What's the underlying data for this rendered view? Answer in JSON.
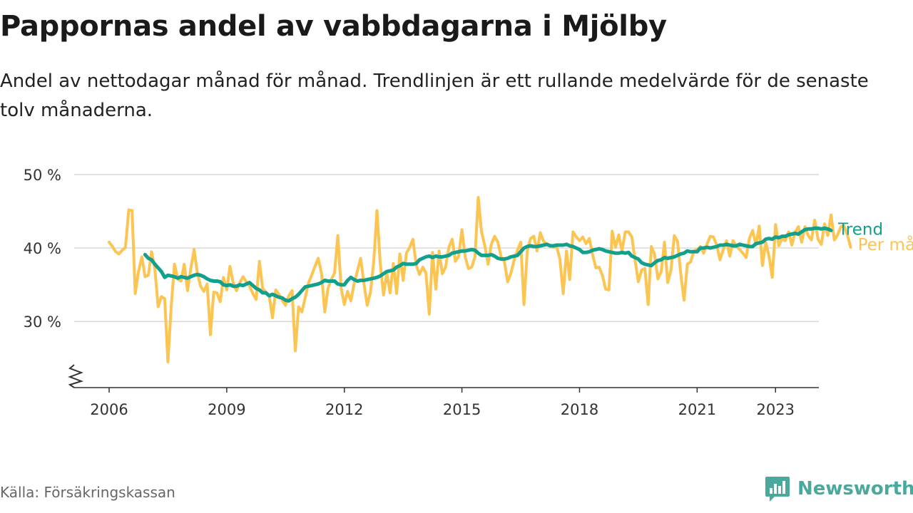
{
  "header": {
    "title": "Pappornas andel av vabbdagarna i Mjölby",
    "subtitle": "Andel av nettodagar månad för månad. Trendlinjen är ett rullande medelvärde för de senaste tolv månaderna."
  },
  "footer": {
    "source": "Källa: Försäkringskassan",
    "brand": "Newsworthy",
    "brand_icon": "bar-chart-speech-bubble-icon"
  },
  "colors": {
    "monthly": "#fcc450",
    "trend": "#12a08d",
    "grid": "#d9d9d9",
    "axis": "#333333",
    "brand": "#4aa89c"
  },
  "chart_data": {
    "type": "line",
    "x_axis": {
      "type": "time",
      "ticks": [
        "2006",
        "2009",
        "2012",
        "2015",
        "2018",
        "2021",
        "2023"
      ],
      "range": [
        "2006-01",
        "2023-04"
      ]
    },
    "y_axis": {
      "unit": "%",
      "ticks": [
        "30 %",
        "40 %",
        "50 %"
      ],
      "range": [
        21,
        50
      ],
      "broken_axis": true
    },
    "grid": true,
    "legend": "direct labels at line ends",
    "start_month": "2006-01",
    "series": [
      {
        "name": "Per månad",
        "values": [
          40.8,
          40.2,
          39.5,
          39.2,
          39.7,
          40.1,
          45.2,
          45.1,
          33.8,
          36.8,
          38.8,
          36.1,
          36.3,
          39.5,
          37.2,
          32.0,
          33.4,
          33.1,
          24.5,
          32.0,
          37.8,
          35.8,
          35.5,
          37.8,
          34.2,
          37.2,
          39.8,
          36.6,
          34.8,
          34.1,
          35.1,
          28.2,
          34.0,
          33.9,
          32.7,
          36.0,
          34.3,
          37.5,
          35.2,
          34.2,
          35.3,
          36.1,
          35.4,
          34.8,
          33.8,
          33.0,
          38.2,
          34.5,
          34.0,
          33.5,
          30.5,
          34.3,
          33.7,
          32.9,
          32.2,
          33.5,
          34.2,
          26.0,
          32.0,
          31.3,
          33.2,
          35.2,
          36.3,
          37.5,
          38.6,
          36.6,
          31.3,
          34.5,
          35.7,
          36.6,
          41.7,
          34.6,
          32.3,
          34.1,
          32.8,
          35.2,
          36.9,
          38.6,
          35.2,
          32.2,
          34.0,
          38.2,
          45.1,
          37.9,
          33.6,
          36.6,
          33.9,
          37.9,
          33.8,
          39.2,
          35.6,
          39.3,
          40.1,
          41.2,
          37.7,
          36.4,
          37.4,
          36.6,
          31.0,
          39.4,
          34.4,
          39.6,
          36.5,
          37.4,
          40.1,
          41.2,
          38.2,
          38.9,
          42.5,
          38.8,
          37.2,
          37.4,
          38.8,
          46.9,
          42.2,
          40.3,
          37.8,
          40.5,
          41.6,
          40.8,
          38.8,
          38.2,
          35.4,
          36.6,
          38.4,
          39.7,
          40.8,
          32.3,
          39.6,
          41.3,
          41.6,
          39.6,
          42.1,
          40.9,
          40.5,
          40.4,
          40.1,
          40.2,
          38.5,
          33.8,
          39.6,
          35.7,
          42.2,
          41.5,
          41.0,
          41.5,
          40.6,
          41.3,
          39.1,
          37.3,
          37.4,
          36.3,
          34.4,
          34.3,
          42.3,
          40.1,
          41.8,
          39.6,
          42.2,
          42.2,
          41.5,
          38.4,
          35.4,
          37.0,
          37.2,
          32.3,
          40.2,
          39.1,
          35.8,
          36.8,
          40.8,
          35.3,
          37.0,
          41.7,
          40.9,
          36.5,
          32.9,
          37.8,
          38.1,
          39.6,
          39.8,
          40.2,
          39.3,
          40.5,
          41.6,
          41.5,
          40.4,
          38.4,
          39.8,
          41.0,
          38.9,
          41.0,
          40.3,
          39.8,
          39.3,
          38.7,
          41.3,
          42.4,
          40.4,
          43.0,
          37.6,
          40.8,
          38.9,
          36.0,
          43.2,
          40.3,
          41.3,
          41.0,
          42.2,
          40.4,
          42.2,
          42.9,
          40.8,
          42.9,
          41.7,
          41.1,
          43.8,
          41.2,
          40.5,
          43.3,
          41.7,
          44.5,
          41.1,
          41.8,
          42.9,
          43.0,
          41.8,
          40.1
        ]
      },
      {
        "name": "Trend",
        "start_month": "2006-12",
        "values": [
          39.1,
          38.6,
          38.4,
          37.8,
          37.3,
          36.8,
          36.0,
          36.3,
          36.2,
          36.1,
          35.9,
          36.1,
          36.0,
          35.9,
          36.1,
          36.3,
          36.4,
          36.3,
          36.1,
          35.8,
          35.6,
          35.5,
          35.5,
          35.4,
          35.0,
          34.9,
          35.0,
          34.8,
          34.8,
          35.0,
          34.9,
          35.1,
          35.3,
          34.9,
          34.5,
          34.3,
          33.9,
          33.9,
          33.5,
          33.7,
          33.5,
          33.3,
          33.2,
          32.9,
          32.8,
          33.1,
          33.3,
          33.7,
          34.2,
          34.7,
          34.8,
          34.9,
          35.0,
          35.1,
          35.3,
          35.6,
          35.5,
          35.5,
          35.5,
          35.1,
          35.0,
          35.0,
          35.6,
          36.0,
          35.7,
          35.5,
          35.6,
          35.6,
          35.7,
          35.8,
          35.9,
          36.0,
          36.2,
          36.5,
          36.8,
          36.9,
          37.0,
          37.4,
          37.6,
          37.9,
          37.8,
          37.8,
          37.8,
          37.9,
          38.4,
          38.6,
          38.8,
          38.9,
          38.7,
          38.9,
          38.8,
          38.8,
          38.9,
          39.0,
          39.3,
          39.4,
          39.5,
          39.6,
          39.6,
          39.7,
          39.8,
          39.7,
          39.3,
          39.0,
          39.0,
          39.0,
          39.1,
          38.9,
          38.6,
          38.5,
          38.5,
          38.6,
          38.8,
          38.9,
          39.0,
          39.5,
          40.0,
          40.2,
          40.3,
          40.2,
          40.2,
          40.3,
          40.4,
          40.5,
          40.3,
          40.3,
          40.4,
          40.4,
          40.4,
          40.5,
          40.3,
          40.2,
          40.0,
          39.8,
          39.4,
          39.4,
          39.5,
          39.7,
          39.8,
          39.9,
          39.8,
          39.6,
          39.5,
          39.4,
          39.3,
          39.3,
          39.4,
          39.3,
          39.4,
          38.9,
          38.7,
          38.5,
          38.0,
          37.8,
          37.7,
          37.6,
          38.0,
          38.3,
          38.4,
          38.7,
          38.6,
          38.7,
          38.8,
          39.0,
          39.2,
          39.3,
          39.6,
          39.5,
          39.5,
          39.5,
          40.0,
          40.0,
          40.1,
          40.0,
          40.1,
          40.2,
          40.4,
          40.4,
          40.5,
          40.4,
          40.3,
          40.3,
          40.5,
          40.4,
          40.3,
          40.2,
          40.2,
          40.6,
          40.7,
          40.8,
          41.2,
          41.3,
          41.2,
          41.5,
          41.4,
          41.6,
          41.6,
          41.8,
          41.9,
          42.0,
          41.9,
          42.2,
          42.5,
          42.6,
          42.6,
          42.7,
          42.7,
          42.6,
          42.7,
          42.6,
          42.4
        ]
      }
    ]
  }
}
